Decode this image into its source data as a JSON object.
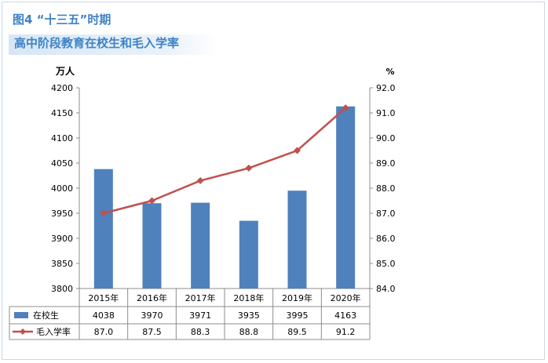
{
  "figure": {
    "title_line1": "图4  “十三五”时期",
    "title_line2": "高中阶段教育在校生和毛入学率"
  },
  "chart_data": {
    "type": "bar+line",
    "categories": [
      "2015年",
      "2016年",
      "2017年",
      "2018年",
      "2019年",
      "2020年"
    ],
    "series": [
      {
        "name": "在校生",
        "type": "bar",
        "axis": "left",
        "color": "#4f81bd",
        "values": [
          4038,
          3970,
          3971,
          3935,
          3995,
          4163
        ]
      },
      {
        "name": "毛入学率",
        "type": "line",
        "axis": "right",
        "color": "#c0504d",
        "values": [
          87.0,
          87.5,
          88.3,
          88.8,
          89.5,
          91.2
        ]
      }
    ],
    "left_axis": {
      "unit": "万人",
      "range": [
        3800,
        4200
      ],
      "step": 50
    },
    "right_axis": {
      "unit": "%",
      "range": [
        84.0,
        92.0
      ],
      "step": 1.0
    },
    "legend": "data-table-below",
    "grid": false
  }
}
